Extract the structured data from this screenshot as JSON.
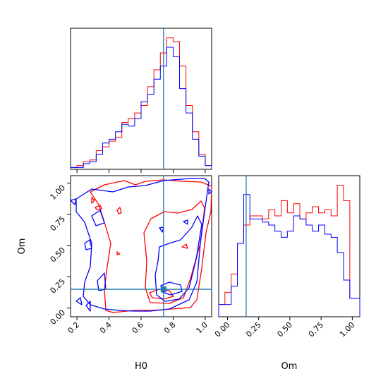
{
  "chart_data": {
    "type": "corner",
    "colors": {
      "series_a": "#ff0000",
      "series_b": "#0000ff",
      "truth": "#1f77b4"
    },
    "truth": {
      "H0": 0.74,
      "Om": 0.15
    },
    "hist_H0": {
      "xlim": [
        0.16,
        1.04
      ],
      "bin_edges": [
        0.16,
        0.2,
        0.24,
        0.28,
        0.32,
        0.36,
        0.4,
        0.44,
        0.48,
        0.52,
        0.56,
        0.6,
        0.64,
        0.68,
        0.72,
        0.76,
        0.8,
        0.84,
        0.88,
        0.92,
        0.96,
        1.0,
        1.04
      ],
      "series": [
        {
          "color": "#ff0000",
          "counts": [
            1,
            2,
            4,
            5,
            10,
            12,
            15,
            17,
            25,
            27,
            30,
            34,
            44,
            53,
            62,
            70,
            68,
            55,
            34,
            20,
            8,
            2
          ]
        },
        {
          "color": "#0000ff",
          "counts": [
            1,
            1,
            3,
            4,
            8,
            14,
            16,
            20,
            24,
            23,
            27,
            36,
            40,
            48,
            55,
            65,
            60,
            43,
            30,
            16,
            7,
            2
          ]
        }
      ]
    },
    "hist_Om": {
      "xlim": [
        -0.07,
        1.06
      ],
      "bin_edges": [
        -0.07,
        -0.02,
        0.03,
        0.08,
        0.13,
        0.18,
        0.23,
        0.28,
        0.33,
        0.38,
        0.43,
        0.48,
        0.53,
        0.58,
        0.63,
        0.68,
        0.73,
        0.78,
        0.83,
        0.88,
        0.93,
        0.98,
        1.03,
        1.06
      ],
      "series": [
        {
          "color": "#ff0000",
          "counts": [
            4,
            8,
            14,
            24,
            30,
            33,
            33,
            32,
            35,
            33,
            38,
            34,
            37,
            32,
            34,
            36,
            34,
            35,
            33,
            43,
            38,
            6,
            6
          ]
        },
        {
          "color": "#0000ff",
          "counts": [
            4,
            4,
            10,
            24,
            40,
            32,
            32,
            31,
            30,
            28,
            26,
            28,
            33,
            32,
            30,
            28,
            30,
            27,
            26,
            21,
            12,
            6,
            6
          ]
        }
      ]
    },
    "xticks_H0": [
      "0.2",
      "0.4",
      "0.6",
      "0.8",
      "1.0"
    ],
    "yticks_Om": [
      "0.00",
      "0.25",
      "0.50",
      "0.75",
      "1.00"
    ],
    "xticks_Om": [
      "0.00",
      "0.25",
      "0.50",
      "0.75",
      "1.00"
    ],
    "xlabel_H0": "H0",
    "ylabel_Om": "Om",
    "xlabel_Om": "Om"
  }
}
